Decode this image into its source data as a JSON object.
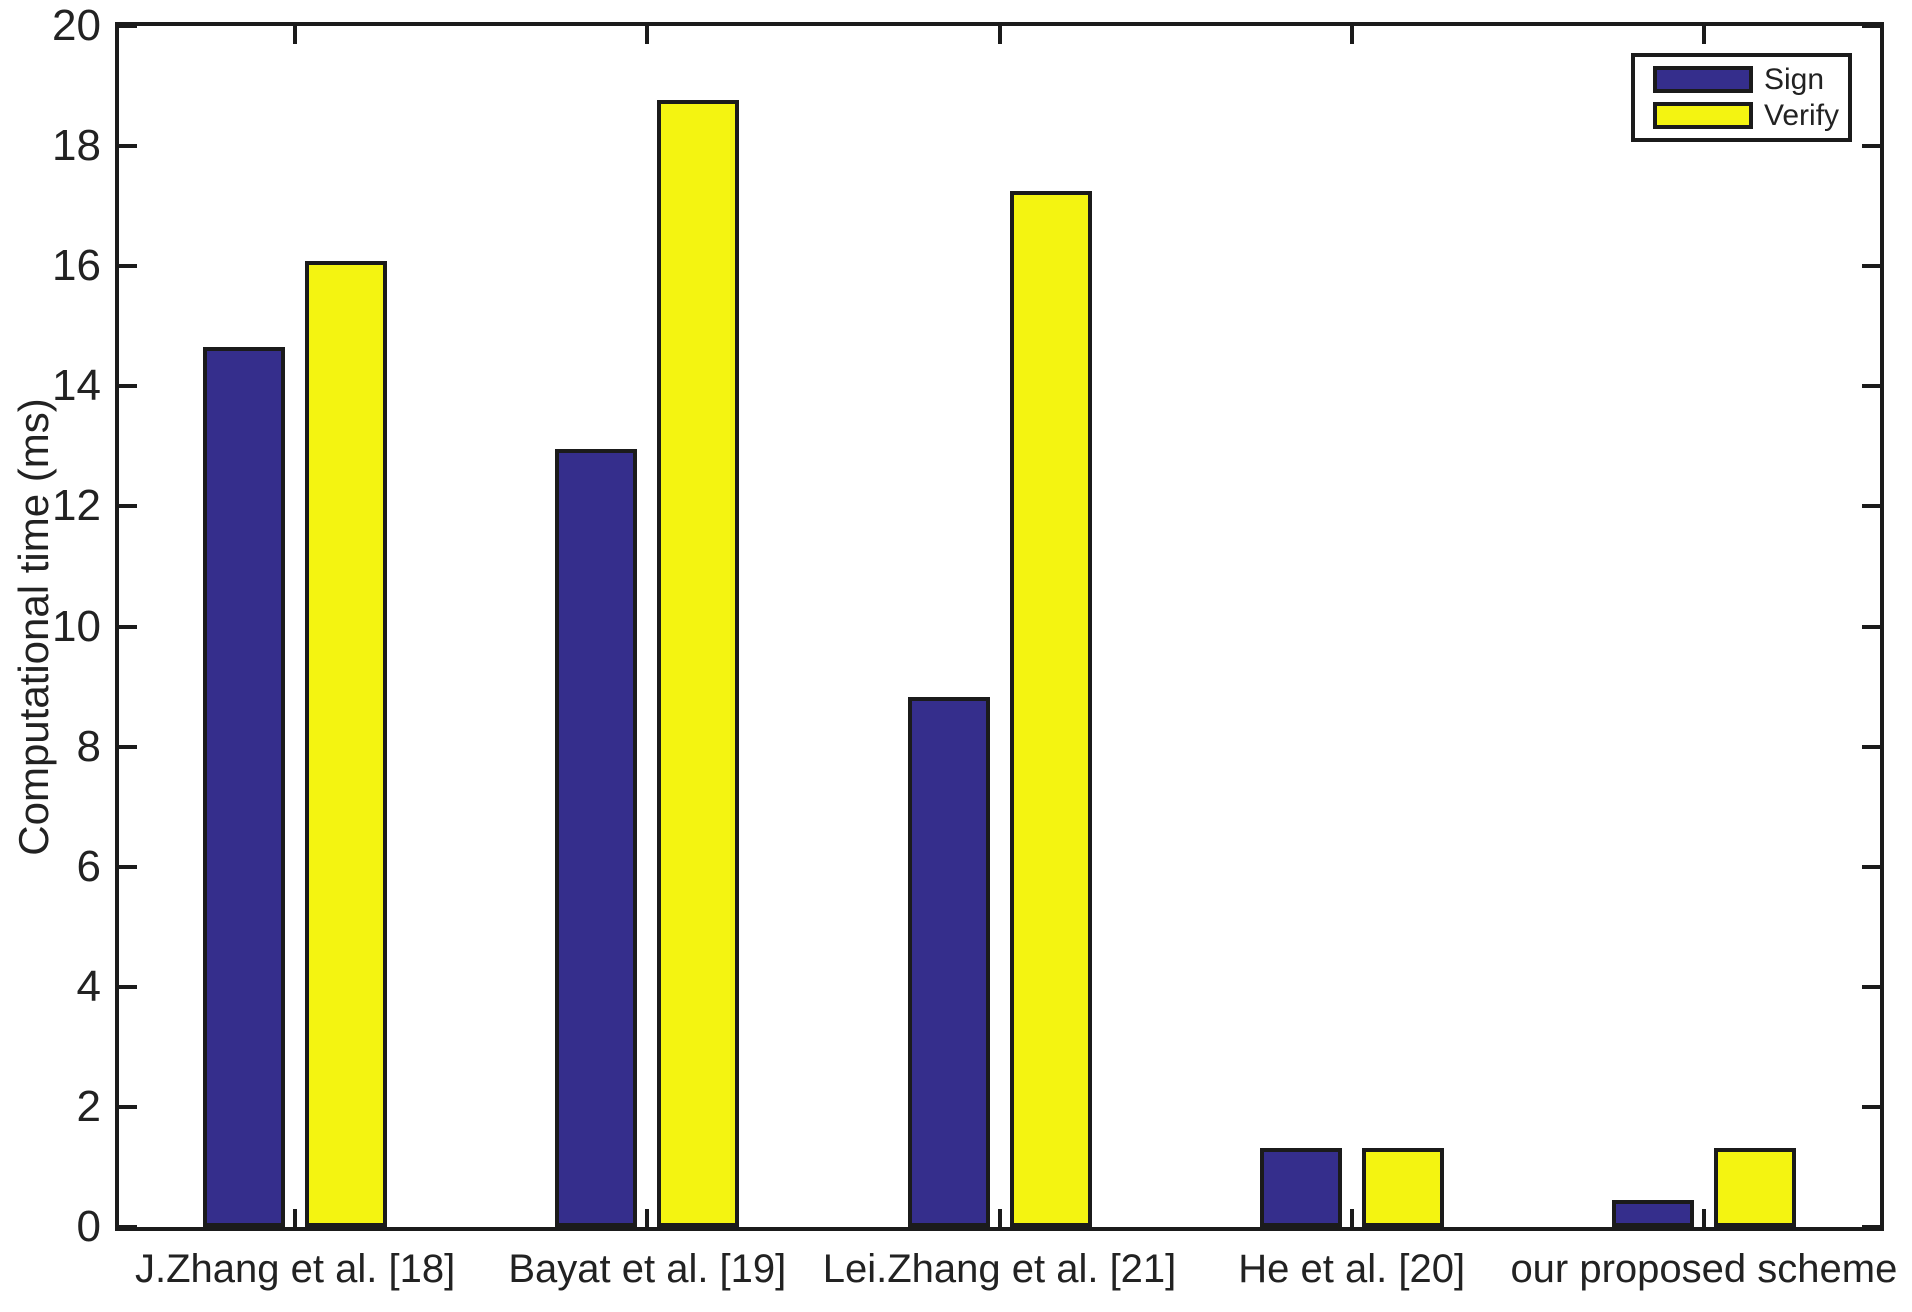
{
  "chart_data": {
    "type": "bar",
    "title": "",
    "xlabel": "",
    "ylabel": "Computational time (ms)",
    "categories": [
      "J.Zhang et al. [18]",
      "Bayat et al. [19]",
      "Lei.Zhang et al. [21]",
      "He et al. [20]",
      "our proposed scheme"
    ],
    "series": [
      {
        "name": "Sign",
        "color": "#352E8C",
        "values": [
          14.66,
          12.96,
          8.83,
          1.32,
          0.45
        ]
      },
      {
        "name": "Verify",
        "color": "#F4F411",
        "values": [
          16.08,
          18.76,
          17.26,
          1.32,
          1.32
        ]
      }
    ],
    "ylim": [
      0,
      20
    ],
    "yticks": [
      0,
      2,
      4,
      6,
      8,
      10,
      12,
      14,
      16,
      18,
      20
    ],
    "grid": false,
    "legend_position": "top-right",
    "axis_color": "#1b1b1b",
    "bar_edge_color": "#1b1b1b"
  }
}
